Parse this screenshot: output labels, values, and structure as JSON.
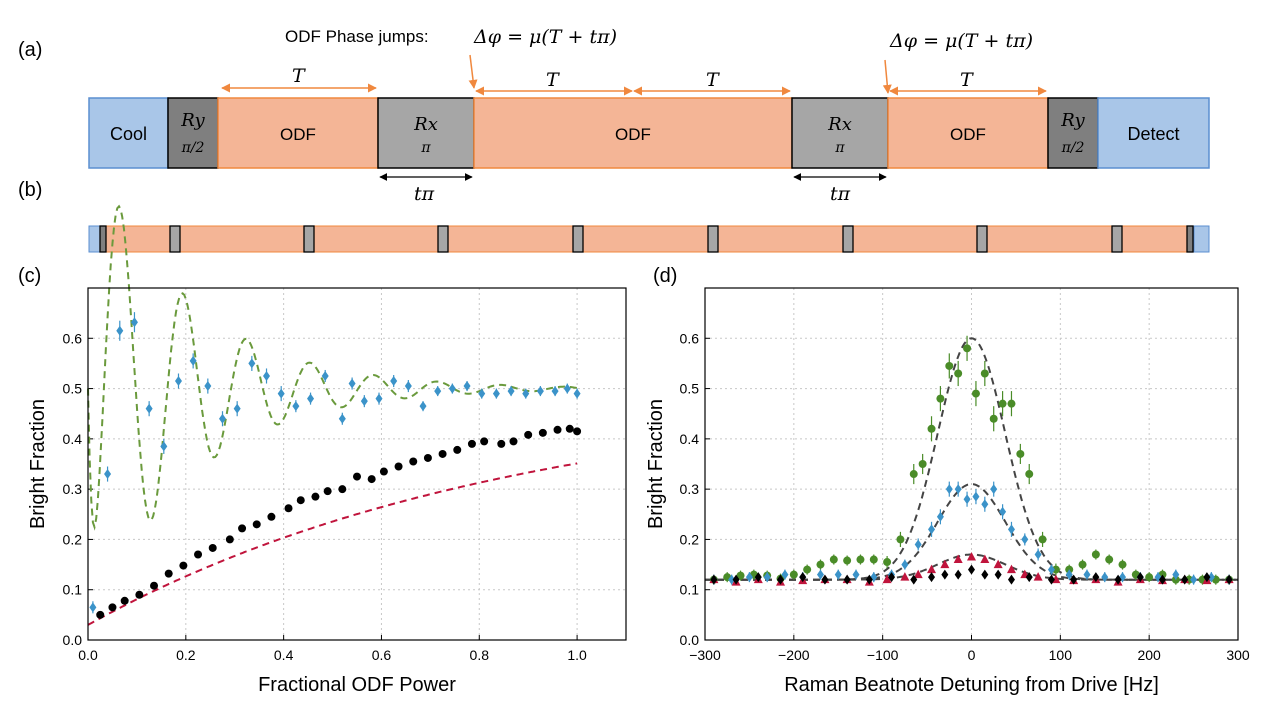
{
  "panels": {
    "a": {
      "label": "(a)"
    },
    "b": {
      "label": "(b)"
    },
    "c": {
      "label": "(c)"
    },
    "d": {
      "label": "(d)"
    }
  },
  "sequence": {
    "phase_jump_label": "ODF Phase jumps:",
    "delta_phi_formula": "Δφ = μ(T + tπ)",
    "period_label": "T",
    "t_pi_label": "tπ",
    "blocks": [
      {
        "id": "cool",
        "text": "Cool",
        "kind": "blue"
      },
      {
        "id": "ry1",
        "text": "Ry",
        "sub": "π/2",
        "kind": "dark"
      },
      {
        "id": "odf1",
        "text": "ODF",
        "kind": "odf"
      },
      {
        "id": "rx1",
        "text": "Rx",
        "sub": "π",
        "kind": "grey"
      },
      {
        "id": "odf2",
        "text": "ODF",
        "kind": "odf"
      },
      {
        "id": "rx2",
        "text": "Rx",
        "sub": "π",
        "kind": "grey"
      },
      {
        "id": "odf3",
        "text": "ODF",
        "kind": "odf"
      },
      {
        "id": "ry2",
        "text": "Ry",
        "sub": "π/2",
        "kind": "dark"
      },
      {
        "id": "detect",
        "text": "Detect",
        "kind": "blue"
      }
    ]
  },
  "colors": {
    "odf_fill": "#f4b596",
    "odf_border": "#f0883e",
    "arrow": "#f0883e",
    "cool_fill": "#a9c6e8",
    "cool_border": "#5b8fd0",
    "pulse_fill": "#a6a6a6",
    "pulse_dark": "#7f7f7f",
    "blue_pts": "#3b93c9",
    "black_pts": "#000000",
    "green_pts": "#4a8c28",
    "red_pts": "#c0143c",
    "green_dash": "#6a9a3c",
    "red_dash": "#c0143c",
    "grey_dash": "#444444"
  },
  "chart_data": [
    {
      "panel": "c",
      "type": "scatter",
      "xlabel": "Fractional ODF Power",
      "ylabel": "Bright Fraction",
      "xlim": [
        0,
        1.1
      ],
      "ylim": [
        0,
        0.7
      ],
      "xticks": [
        "0.0",
        "0.2",
        "0.4",
        "0.6",
        "0.8",
        "1.0"
      ],
      "yticks": [
        "0.0",
        "0.1",
        "0.2",
        "0.3",
        "0.4",
        "0.5",
        "0.6"
      ],
      "grid": true,
      "series": [
        {
          "marker": "diamond",
          "color": "#3b93c9",
          "x": [
            0.01,
            0.04,
            0.065,
            0.095,
            0.125,
            0.155,
            0.185,
            0.215,
            0.245,
            0.275,
            0.305,
            0.335,
            0.365,
            0.395,
            0.425,
            0.455,
            0.485,
            0.52,
            0.54,
            0.565,
            0.595,
            0.625,
            0.655,
            0.685,
            0.715,
            0.745,
            0.775,
            0.805,
            0.835,
            0.865,
            0.895,
            0.925,
            0.955,
            0.98,
            1.0
          ],
          "y": [
            0.065,
            0.33,
            0.615,
            0.632,
            0.46,
            0.385,
            0.515,
            0.555,
            0.505,
            0.44,
            0.46,
            0.55,
            0.525,
            0.49,
            0.465,
            0.48,
            0.525,
            0.44,
            0.51,
            0.475,
            0.48,
            0.515,
            0.505,
            0.465,
            0.495,
            0.5,
            0.505,
            0.49,
            0.49,
            0.495,
            0.49,
            0.495,
            0.495,
            0.5,
            0.49
          ],
          "err": [
            0.012,
            0.015,
            0.02,
            0.02,
            0.015,
            0.015,
            0.015,
            0.015,
            0.015,
            0.015,
            0.015,
            0.015,
            0.015,
            0.015,
            0.012,
            0.012,
            0.012,
            0.012,
            0.012,
            0.012,
            0.012,
            0.012,
            0.012,
            0.01,
            0.01,
            0.01,
            0.01,
            0.01,
            0.01,
            0.01,
            0.01,
            0.01,
            0.01,
            0.01,
            0.01
          ]
        },
        {
          "marker": "circle",
          "color": "#000000",
          "x": [
            0.025,
            0.05,
            0.075,
            0.105,
            0.135,
            0.165,
            0.195,
            0.225,
            0.255,
            0.29,
            0.315,
            0.345,
            0.375,
            0.41,
            0.435,
            0.465,
            0.49,
            0.52,
            0.55,
            0.58,
            0.605,
            0.635,
            0.665,
            0.695,
            0.725,
            0.755,
            0.785,
            0.81,
            0.845,
            0.87,
            0.9,
            0.93,
            0.96,
            0.985,
            1.0
          ],
          "y": [
            0.05,
            0.065,
            0.078,
            0.09,
            0.108,
            0.132,
            0.148,
            0.17,
            0.183,
            0.2,
            0.222,
            0.23,
            0.245,
            0.262,
            0.278,
            0.285,
            0.296,
            0.3,
            0.325,
            0.32,
            0.335,
            0.345,
            0.355,
            0.362,
            0.37,
            0.378,
            0.39,
            0.395,
            0.39,
            0.395,
            0.408,
            0.412,
            0.418,
            0.42,
            0.415
          ]
        }
      ]
    },
    {
      "panel": "d",
      "type": "scatter",
      "xlabel": "Raman Beatnote Detuning from Drive [Hz]",
      "ylabel": "Bright Fraction",
      "xlim": [
        -300,
        300
      ],
      "ylim": [
        0,
        0.7
      ],
      "xticks": [
        "−300",
        "−200",
        "−100",
        "0",
        "100",
        "200",
        "300"
      ],
      "yticks": [
        "0.0",
        "0.1",
        "0.2",
        "0.3",
        "0.4",
        "0.5",
        "0.6"
      ],
      "grid": true,
      "series": [
        {
          "marker": "circle",
          "color": "#4a8c28",
          "x": [
            -290,
            -275,
            -260,
            -245,
            -230,
            -215,
            -200,
            -185,
            -170,
            -155,
            -140,
            -125,
            -110,
            -95,
            -80,
            -65,
            -55,
            -45,
            -35,
            -25,
            -15,
            -5,
            5,
            15,
            25,
            35,
            45,
            55,
            65,
            80,
            95,
            110,
            125,
            140,
            155,
            170,
            185,
            200,
            215,
            230,
            245,
            260,
            275,
            290
          ],
          "y": [
            0.12,
            0.125,
            0.128,
            0.13,
            0.128,
            0.122,
            0.13,
            0.14,
            0.15,
            0.16,
            0.158,
            0.16,
            0.16,
            0.155,
            0.2,
            0.33,
            0.35,
            0.42,
            0.48,
            0.545,
            0.53,
            0.58,
            0.49,
            0.53,
            0.44,
            0.47,
            0.47,
            0.37,
            0.33,
            0.2,
            0.14,
            0.14,
            0.15,
            0.17,
            0.16,
            0.15,
            0.13,
            0.125,
            0.13,
            0.12,
            0.12,
            0.12,
            0.12,
            0.12
          ],
          "err": [
            0.01,
            0.01,
            0.01,
            0.01,
            0.01,
            0.01,
            0.01,
            0.01,
            0.01,
            0.01,
            0.01,
            0.01,
            0.01,
            0.012,
            0.015,
            0.02,
            0.02,
            0.025,
            0.025,
            0.025,
            0.025,
            0.025,
            0.025,
            0.025,
            0.025,
            0.025,
            0.025,
            0.02,
            0.02,
            0.015,
            0.012,
            0.01,
            0.01,
            0.01,
            0.01,
            0.01,
            0.01,
            0.01,
            0.01,
            0.01,
            0.01,
            0.01,
            0.01,
            0.01
          ]
        },
        {
          "marker": "diamond",
          "color": "#3b93c9",
          "x": [
            -290,
            -270,
            -250,
            -230,
            -210,
            -190,
            -170,
            -150,
            -130,
            -110,
            -90,
            -75,
            -60,
            -45,
            -35,
            -25,
            -15,
            -5,
            5,
            15,
            25,
            35,
            45,
            60,
            75,
            90,
            110,
            130,
            150,
            170,
            190,
            210,
            230,
            250,
            270,
            290
          ],
          "y": [
            0.12,
            0.12,
            0.125,
            0.125,
            0.13,
            0.125,
            0.13,
            0.13,
            0.13,
            0.125,
            0.13,
            0.15,
            0.19,
            0.22,
            0.245,
            0.3,
            0.3,
            0.28,
            0.285,
            0.27,
            0.3,
            0.255,
            0.22,
            0.2,
            0.17,
            0.14,
            0.13,
            0.13,
            0.125,
            0.125,
            0.125,
            0.125,
            0.13,
            0.12,
            0.125,
            0.12
          ],
          "err": [
            0.01,
            0.01,
            0.01,
            0.01,
            0.01,
            0.01,
            0.01,
            0.01,
            0.01,
            0.01,
            0.01,
            0.01,
            0.012,
            0.015,
            0.015,
            0.015,
            0.015,
            0.015,
            0.015,
            0.015,
            0.015,
            0.015,
            0.015,
            0.012,
            0.012,
            0.01,
            0.01,
            0.01,
            0.01,
            0.01,
            0.01,
            0.01,
            0.01,
            0.01,
            0.01,
            0.01
          ]
        },
        {
          "marker": "triangle",
          "color": "#c0143c",
          "x": [
            -290,
            -265,
            -240,
            -215,
            -190,
            -165,
            -140,
            -115,
            -95,
            -75,
            -60,
            -45,
            -30,
            -15,
            0,
            15,
            30,
            45,
            60,
            75,
            95,
            115,
            140,
            165,
            190,
            215,
            240,
            265,
            290
          ],
          "y": [
            0.12,
            0.115,
            0.12,
            0.115,
            0.118,
            0.12,
            0.12,
            0.115,
            0.12,
            0.125,
            0.13,
            0.14,
            0.15,
            0.16,
            0.165,
            0.16,
            0.15,
            0.14,
            0.13,
            0.125,
            0.12,
            0.118,
            0.12,
            0.115,
            0.12,
            0.118,
            0.12,
            0.118,
            0.12
          ]
        },
        {
          "marker": "diamond",
          "color": "#000000",
          "x": [
            -290,
            -265,
            -240,
            -215,
            -190,
            -165,
            -140,
            -115,
            -90,
            -65,
            -45,
            -30,
            -15,
            0,
            15,
            30,
            45,
            65,
            90,
            115,
            140,
            165,
            190,
            215,
            240,
            265,
            290
          ],
          "y": [
            0.12,
            0.12,
            0.125,
            0.12,
            0.125,
            0.12,
            0.12,
            0.12,
            0.125,
            0.12,
            0.125,
            0.13,
            0.13,
            0.14,
            0.13,
            0.13,
            0.12,
            0.125,
            0.12,
            0.12,
            0.125,
            0.12,
            0.125,
            0.12,
            0.12,
            0.125,
            0.12
          ]
        }
      ]
    }
  ]
}
